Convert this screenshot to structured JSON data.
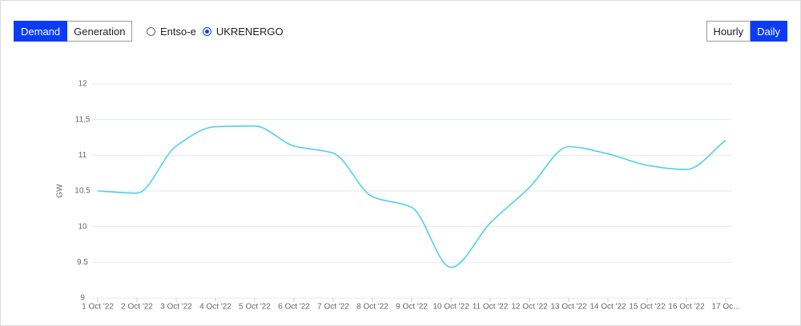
{
  "controls": {
    "views": [
      "Demand",
      "Generation"
    ],
    "active_view": 0,
    "sources": [
      "Entso-e",
      "UKRENERGO"
    ],
    "active_source": 1,
    "resolutions": [
      "Hourly",
      "Daily"
    ],
    "active_resolution": 1
  },
  "chart_data": {
    "type": "line",
    "y_label": "GW",
    "categories": [
      "1 Oct '22",
      "2 Oct '22",
      "3 Oct '22",
      "4 Oct '22",
      "5 Oct '22",
      "6 Oct '22",
      "7 Oct '22",
      "8 Oct '22",
      "9 Oct '22",
      "10 Oct '22",
      "11 Oct '22",
      "12 Oct '22",
      "13 Oct '22",
      "14 Oct '22",
      "15 Oct '22",
      "16 Oct '22",
      "17 Oc..."
    ],
    "series": [
      {
        "color": "#4fd0f0",
        "values": [
          10.5,
          10.47,
          11.13,
          11.4,
          11.41,
          11.13,
          11.03,
          10.42,
          10.27,
          9.43,
          10.05,
          10.55,
          11.12,
          11.02,
          10.86,
          10.8,
          11.21
        ]
      }
    ],
    "ylim": [
      9,
      12
    ],
    "yticks": [
      9,
      9.5,
      10,
      10.5,
      11,
      11.5,
      12
    ],
    "grid": true
  }
}
